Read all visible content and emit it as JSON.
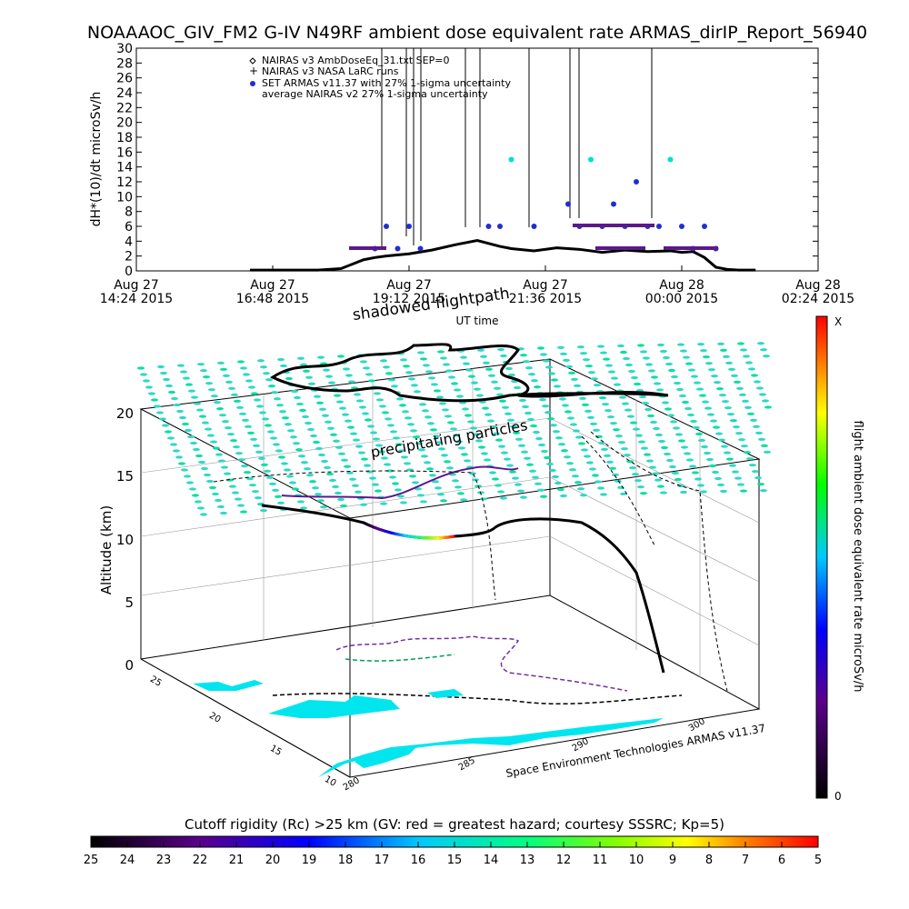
{
  "title": "NOAAAOC_GIV_FM2 G-IV    N49RF   ambient dose equivalent rate ARMAS_dirIP_Report_56940",
  "chart_data": [
    {
      "type": "scatter",
      "ylabel": "dH*(10)/dt microSv/h",
      "xlabel": "UT time",
      "ylim": [
        0,
        30
      ],
      "yticks": [
        0,
        2,
        4,
        6,
        8,
        10,
        12,
        14,
        16,
        18,
        20,
        22,
        24,
        26,
        28,
        30
      ],
      "xticks": [
        {
          "l1": "Aug 27",
          "l2": "14:24 2015"
        },
        {
          "l1": "Aug 27",
          "l2": "16:48 2015"
        },
        {
          "l1": "Aug 27",
          "l2": "19:12 2015"
        },
        {
          "l1": "Aug 27",
          "l2": "21:36 2015"
        },
        {
          "l1": "Aug 28",
          "l2": "00:00 2015"
        },
        {
          "l1": "Aug 28",
          "l2": "02:24 2015"
        }
      ],
      "legend": [
        {
          "symbol": "diamond",
          "label": "NAIRAS v3 AmbDoseEq_31.txt SEP=0"
        },
        {
          "symbol": "plus",
          "label": "NAIRAS v3 NASA LaRC runs"
        },
        {
          "symbol": "dot",
          "label": "SET ARMAS v11.37 with 27% 1-sigma uncertainty"
        },
        {
          "symbol": "none",
          "label": "average NAIRAS v2 27% 1-sigma uncertainty"
        }
      ],
      "series": [
        {
          "x_hours_labels_note": "",
          "x": [
            17.2,
            17.6,
            18.0,
            18.4,
            18.6,
            18.8,
            19.2,
            19.6,
            20.0,
            20.4,
            20.8,
            21.0,
            21.4,
            21.8,
            22.2,
            22.6,
            23.0,
            23.4,
            23.8,
            24.0,
            24.2,
            24.4,
            24.6,
            24.8,
            25.0
          ],
          "y": [
            0.1,
            0.1,
            0.3,
            1.5,
            1.8,
            2.0,
            2.3,
            2.8,
            3.5,
            4.1,
            3.3,
            3.0,
            2.7,
            3.1,
            2.9,
            2.5,
            2.8,
            2.6,
            2.7,
            2.5,
            2.6,
            1.8,
            0.5,
            0.2,
            0.1
          ]
        },
        {
          "x": [
            18.6,
            18.8,
            19.0,
            19.2,
            19.4,
            20.6,
            20.8,
            21.0,
            21.4,
            22.0,
            22.2,
            22.4,
            22.6,
            22.8,
            23.0,
            23.2,
            23.4,
            23.6,
            23.8,
            24.0,
            24.2,
            24.4,
            24.6
          ],
          "y": [
            3,
            6,
            3,
            6,
            3,
            6,
            6,
            15,
            6,
            9,
            6,
            15,
            6,
            9,
            6,
            12,
            6,
            6,
            15,
            6,
            3,
            6,
            3
          ]
        }
      ]
    },
    {
      "type": "3d-flight-path",
      "title_top": "shadowed flightpath",
      "label_particles": "precipitating particles",
      "zlabel": "Altitude (km)",
      "zticks": [
        "0",
        "5",
        "10",
        "15",
        "20"
      ],
      "lat_ticks": [
        "25",
        "20",
        "15",
        "10"
      ],
      "lon_ticks": [
        "280",
        "285",
        "290",
        "300"
      ],
      "credit": "Space Environment Technologies ARMAS v11.37",
      "colorbar_label": "flight ambient dose equivalent rate microSv/h",
      "colorbar_top": "X",
      "colorbar_bottom": "0"
    },
    {
      "type": "colorbar",
      "title": "Cutoff rigidity (Rc) >25 km (GV: red = greatest hazard; courtesy SSSRC; Kp=5)",
      "ticks": [
        "25",
        "24",
        "23",
        "22",
        "21",
        "20",
        "19",
        "18",
        "17",
        "16",
        "15",
        "14",
        "13",
        "12",
        "11",
        "10",
        "9",
        "8",
        "7",
        "6",
        "5"
      ]
    }
  ]
}
